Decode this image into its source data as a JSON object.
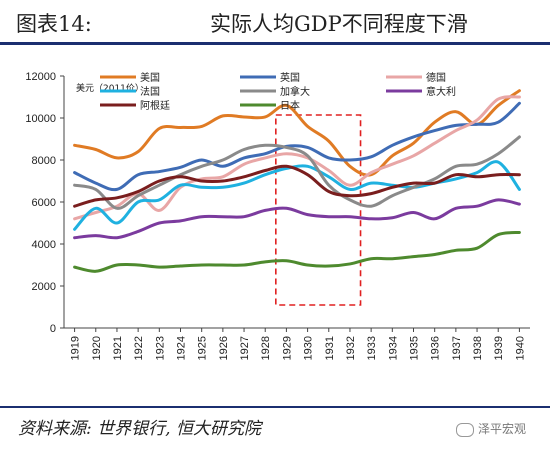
{
  "header": {
    "prefix": "图表14:",
    "title": "实际人均GDP不同程度下滑"
  },
  "footer": {
    "source": "资料来源: 世界银行, 恒大研究院",
    "watermark": "泽平宏观"
  },
  "chart_data": {
    "type": "line",
    "unit_label": "美元（2011价）",
    "x": [
      1919,
      1920,
      1921,
      1922,
      1923,
      1924,
      1925,
      1926,
      1927,
      1928,
      1929,
      1930,
      1931,
      1932,
      1933,
      1934,
      1935,
      1936,
      1937,
      1938,
      1939,
      1940
    ],
    "ylim": [
      0,
      12000
    ],
    "yticks": [
      0,
      2000,
      4000,
      6000,
      8000,
      10000,
      12000
    ],
    "highlight_range": [
      1929,
      1932
    ],
    "series": [
      {
        "name": "美国",
        "color": "#e07b24",
        "values": [
          8700,
          8500,
          8100,
          8400,
          9500,
          9550,
          9600,
          10100,
          10050,
          10050,
          10600,
          9600,
          8900,
          7700,
          7300,
          8200,
          8800,
          9800,
          10300,
          9700,
          10600,
          11300
        ]
      },
      {
        "name": "英国",
        "color": "#3f6cb5",
        "values": [
          7400,
          6900,
          6600,
          7300,
          7450,
          7650,
          8000,
          7700,
          8100,
          8300,
          8650,
          8600,
          8100,
          8000,
          8150,
          8700,
          9100,
          9400,
          9650,
          9700,
          9800,
          10700
        ]
      },
      {
        "name": "德国",
        "color": "#e8a6a6",
        "values": [
          5200,
          5500,
          5800,
          6400,
          5600,
          6700,
          7100,
          7200,
          7800,
          8100,
          8300,
          8100,
          7500,
          6800,
          7400,
          7800,
          8200,
          8800,
          9400,
          9900,
          10900,
          11000
        ]
      },
      {
        "name": "法国",
        "color": "#1fb1e0",
        "values": [
          4700,
          5700,
          5000,
          6000,
          6100,
          6800,
          6700,
          6700,
          6900,
          7300,
          7600,
          7700,
          7200,
          6600,
          6900,
          6800,
          6700,
          6900,
          7100,
          7400,
          7900,
          6600
        ]
      },
      {
        "name": "加拿大",
        "color": "#8a8a8a",
        "values": [
          6800,
          6600,
          5700,
          6300,
          6800,
          7300,
          7700,
          8000,
          8500,
          8700,
          8600,
          8200,
          6800,
          6100,
          5800,
          6300,
          6700,
          7100,
          7700,
          7800,
          8300,
          9100
        ]
      },
      {
        "name": "意大利",
        "color": "#7b3b9e",
        "values": [
          4300,
          4400,
          4300,
          4600,
          5000,
          5100,
          5300,
          5300,
          5300,
          5600,
          5700,
          5400,
          5300,
          5300,
          5200,
          5250,
          5500,
          5200,
          5700,
          5800,
          6100,
          5900
        ]
      },
      {
        "name": "阿根廷",
        "color": "#7a1e1e",
        "values": [
          5800,
          6100,
          6200,
          6500,
          7000,
          7200,
          7000,
          7000,
          7200,
          7500,
          7700,
          7300,
          6500,
          6300,
          6400,
          6700,
          6900,
          6900,
          7300,
          7200,
          7300,
          7300
        ]
      },
      {
        "name": "日本",
        "color": "#4e8a2e",
        "values": [
          2900,
          2700,
          3000,
          3000,
          2900,
          2950,
          3000,
          3000,
          3000,
          3150,
          3200,
          3000,
          2950,
          3050,
          3300,
          3300,
          3400,
          3500,
          3700,
          3800,
          4450,
          4550
        ]
      }
    ]
  }
}
